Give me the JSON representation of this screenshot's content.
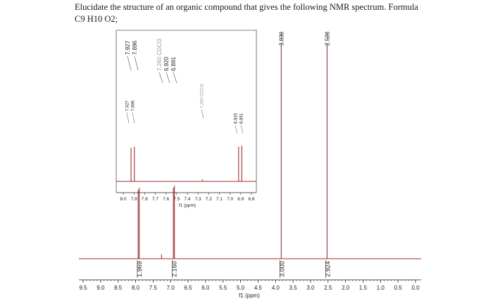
{
  "question": {
    "line1": "Elucidate the structure of an organic compound that gives the following NMR spectrum. Formula",
    "line2": "C9 H10 O2;"
  },
  "colors": {
    "spectrum": "#a12d2d",
    "text": "#222222",
    "inset_border": "#555555",
    "solvent_label": "#999999"
  },
  "chart_data": [
    {
      "type": "line",
      "title": "",
      "xlabel": "f1 (ppm)",
      "ylabel": "",
      "xlim": [
        9.5,
        0.0
      ],
      "x_reversed": true,
      "grid": false,
      "x_ticks": [
        "9.5",
        "9.0",
        "8.5",
        "8.0",
        "7.5",
        "7.0",
        "6.5",
        "6.0",
        "5.5",
        "5.0",
        "4.5",
        "4.0",
        "3.5",
        "3.0",
        "2.5",
        "2.0",
        "1.5",
        "1.0",
        "0.5",
        "0.0"
      ],
      "peaks": [
        {
          "ppm": 7.927,
          "height": 0.32
        },
        {
          "ppm": 7.896,
          "height": 0.33
        },
        {
          "ppm": 7.26,
          "height": 0.02
        },
        {
          "ppm": 6.92,
          "height": 0.33
        },
        {
          "ppm": 6.891,
          "height": 0.34
        },
        {
          "ppm": 3.838,
          "height": 1.0
        },
        {
          "ppm": 2.528,
          "height": 1.0
        }
      ],
      "peak_labels": [
        {
          "text": "7.927",
          "ppm": 7.927
        },
        {
          "text": "7.896",
          "ppm": 7.896
        },
        {
          "text": "7.260 CDCl3",
          "ppm": 7.26
        },
        {
          "text": "6.920",
          "ppm": 6.92
        },
        {
          "text": "6.891",
          "ppm": 6.891
        },
        {
          "text": "3.838",
          "ppm": 3.838
        },
        {
          "text": "2.528",
          "ppm": 2.528
        }
      ],
      "integrals": [
        {
          "text": "1.969",
          "ppm": 7.91
        },
        {
          "text": "2.160",
          "ppm": 6.91
        },
        {
          "text": "3.000",
          "ppm": 3.838
        },
        {
          "text": "2.924",
          "ppm": 2.528
        }
      ]
    },
    {
      "type": "line",
      "title": "",
      "xlabel": "f1 (ppm)",
      "ylabel": "",
      "xlim": [
        8.0,
        6.8
      ],
      "x_reversed": true,
      "grid": false,
      "x_ticks": [
        "8.0",
        "7.9",
        "7.8",
        "7.7",
        "7.6",
        "7.5",
        "7.4",
        "7.3",
        "7.2",
        "7.1",
        "7.0",
        "6.9",
        "6.8"
      ],
      "peaks": [
        {
          "ppm": 7.927,
          "height": 0.9
        },
        {
          "ppm": 7.896,
          "height": 0.93
        },
        {
          "ppm": 7.26,
          "height": 0.05
        },
        {
          "ppm": 6.92,
          "height": 0.93
        },
        {
          "ppm": 6.891,
          "height": 0.96
        }
      ],
      "peak_labels": [
        {
          "text": "7.927",
          "ppm": 7.927
        },
        {
          "text": "7.896",
          "ppm": 7.896
        },
        {
          "text": "7.260 CDCl3",
          "ppm": 7.26
        },
        {
          "text": "6.920",
          "ppm": 6.92
        },
        {
          "text": "6.891",
          "ppm": 6.891
        }
      ]
    }
  ]
}
